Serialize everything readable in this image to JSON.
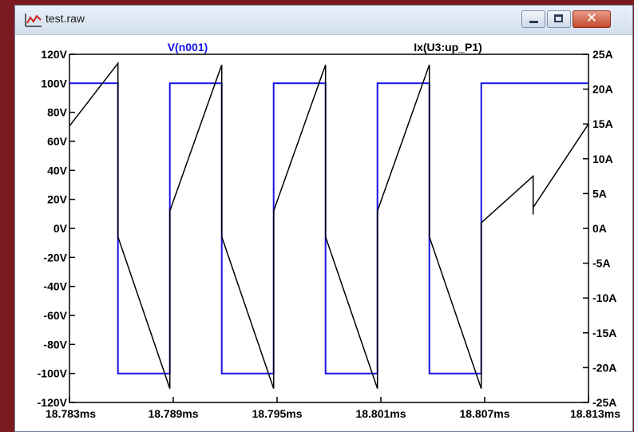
{
  "window": {
    "title": "test.raw",
    "app_icon": "waveform-icon",
    "buttons": {
      "minimize": "minimize-icon",
      "maximize": "maximize-icon",
      "close": "✕"
    },
    "frame_color": "#7a1a1e"
  },
  "chart_data": {
    "type": "line",
    "grid": false,
    "x": {
      "label": "",
      "range": [
        18.783,
        18.813
      ],
      "unit": "ms",
      "ticks": [
        "18.783ms",
        "18.789ms",
        "18.795ms",
        "18.801ms",
        "18.807ms",
        "18.813ms"
      ],
      "tick_values": [
        18.783,
        18.789,
        18.795,
        18.801,
        18.807,
        18.813
      ]
    },
    "y_left": {
      "range": [
        -120,
        120
      ],
      "unit": "V",
      "ticks": [
        "120V",
        "100V",
        "80V",
        "60V",
        "40V",
        "20V",
        "0V",
        "-20V",
        "-40V",
        "-60V",
        "-80V",
        "-100V",
        "-120V"
      ],
      "tick_values": [
        120,
        100,
        80,
        60,
        40,
        20,
        0,
        -20,
        -40,
        -60,
        -80,
        -100,
        -120
      ]
    },
    "y_right": {
      "range": [
        -25,
        25
      ],
      "unit": "A",
      "ticks": [
        "25A",
        "20A",
        "15A",
        "10A",
        "5A",
        "0A",
        "-5A",
        "-10A",
        "-15A",
        "-20A",
        "-25A"
      ],
      "tick_values": [
        25,
        20,
        15,
        10,
        5,
        0,
        -5,
        -10,
        -15,
        -20,
        -25
      ]
    },
    "series": [
      {
        "name": "V(n001)",
        "axis": "left",
        "color": "#1414e6",
        "x": [
          18.783,
          18.7858,
          18.7858,
          18.7888,
          18.7888,
          18.7918,
          18.7918,
          18.7948,
          18.7948,
          18.7978,
          18.7978,
          18.8008,
          18.8008,
          18.8038,
          18.8038,
          18.8068,
          18.8068,
          18.8098,
          18.8098,
          18.813
        ],
        "y": [
          100,
          100,
          -100,
          -100,
          100,
          100,
          -100,
          -100,
          100,
          100,
          -100,
          -100,
          100,
          100,
          -100,
          -100,
          100,
          100,
          100,
          100
        ]
      },
      {
        "name": "Ix(U3:up_P1)",
        "axis": "right",
        "color": "#000000",
        "x": [
          18.783,
          18.7858,
          18.7858,
          18.7858,
          18.7858,
          18.7888,
          18.7888,
          18.7888,
          18.7918,
          18.7918,
          18.7918,
          18.7918,
          18.7948,
          18.7948,
          18.7948,
          18.7978,
          18.7978,
          18.7978,
          18.7978,
          18.8008,
          18.8008,
          18.8008,
          18.8038,
          18.8038,
          18.8038,
          18.8038,
          18.8068,
          18.8068,
          18.8068,
          18.8098,
          18.8098,
          18.8098,
          18.813
        ],
        "y": [
          14.7,
          23.7,
          4.5,
          7.5,
          -1.2,
          -23.0,
          -23.0,
          2.5,
          23.5,
          4.5,
          7.5,
          -1.2,
          -23.0,
          -23.0,
          2.5,
          23.5,
          4.5,
          7.5,
          -1.2,
          -23.0,
          -23.0,
          2.5,
          23.5,
          4.5,
          7.5,
          -1.2,
          -23.0,
          -23.0,
          0.8,
          7.5,
          2.0,
          3.0,
          15.0
        ]
      }
    ]
  }
}
